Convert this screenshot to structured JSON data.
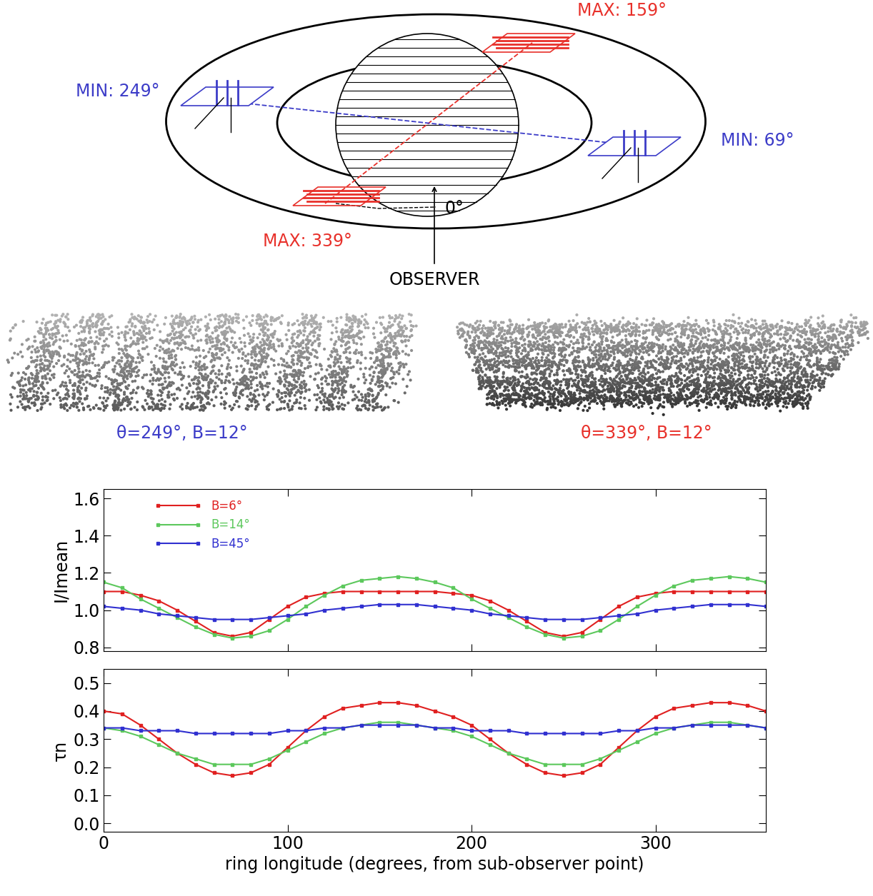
{
  "diagram": {
    "labels": [
      {
        "text": "MAX: 159°",
        "color": "#e8302a"
      },
      {
        "text": "MIN: 249°",
        "color": "#3c3cc8"
      },
      {
        "text": "MIN: 69°",
        "color": "#3c3cc8"
      },
      {
        "text": "MAX: 339°",
        "color": "#e8302a"
      }
    ],
    "zero_label": "0°",
    "observer": "OBSERVER"
  },
  "panels": [
    {
      "caption": "θ=249°, B=12°",
      "color": "#3c3cc8"
    },
    {
      "caption": "θ=339°, B=12°",
      "color": "#e8302a"
    }
  ],
  "chart_data": [
    {
      "type": "line",
      "y_label": "I/Imean",
      "legend": "upper left",
      "marker": "square",
      "tick_labels": "y",
      "x": [
        0,
        10,
        20,
        30,
        40,
        50,
        60,
        70,
        80,
        90,
        100,
        110,
        120,
        130,
        140,
        150,
        160,
        170,
        180,
        190,
        200,
        210,
        220,
        230,
        240,
        250,
        260,
        270,
        280,
        290,
        300,
        310,
        320,
        330,
        340,
        350,
        360
      ],
      "xlim": [
        0,
        360
      ],
      "xticks": [
        0,
        100,
        200,
        300
      ],
      "ylim": [
        0.78,
        1.65
      ],
      "yticks": [
        {
          "value": 0.8,
          "label": "0.8"
        },
        {
          "value": 1.0,
          "label": "1.0"
        },
        {
          "value": 1.2,
          "label": "1.2"
        },
        {
          "value": 1.4,
          "label": "1.4"
        },
        {
          "value": 1.6,
          "label": "1.6"
        }
      ],
      "series": [
        {
          "name": "B=6°",
          "color": "#e02020",
          "values": [
            1.1,
            1.1,
            1.08,
            1.05,
            1.0,
            0.94,
            0.88,
            0.86,
            0.88,
            0.95,
            1.02,
            1.07,
            1.09,
            1.1,
            1.1,
            1.1,
            1.1,
            1.1,
            1.1,
            1.09,
            1.08,
            1.05,
            1.0,
            0.94,
            0.88,
            0.86,
            0.88,
            0.95,
            1.02,
            1.07,
            1.09,
            1.1,
            1.1,
            1.1,
            1.1,
            1.1,
            1.1
          ]
        },
        {
          "name": "B=14°",
          "color": "#5cc85c",
          "values": [
            1.15,
            1.12,
            1.06,
            1.01,
            0.96,
            0.91,
            0.87,
            0.85,
            0.86,
            0.89,
            0.95,
            1.02,
            1.08,
            1.13,
            1.16,
            1.17,
            1.18,
            1.17,
            1.15,
            1.12,
            1.06,
            1.01,
            0.96,
            0.91,
            0.87,
            0.85,
            0.86,
            0.89,
            0.95,
            1.02,
            1.08,
            1.13,
            1.16,
            1.17,
            1.18,
            1.17,
            1.15
          ]
        },
        {
          "name": "B=45°",
          "color": "#3030d0",
          "values": [
            1.02,
            1.01,
            1.0,
            0.98,
            0.97,
            0.96,
            0.95,
            0.95,
            0.95,
            0.96,
            0.97,
            0.98,
            1.0,
            1.01,
            1.02,
            1.03,
            1.03,
            1.03,
            1.02,
            1.01,
            1.0,
            0.98,
            0.97,
            0.96,
            0.95,
            0.95,
            0.95,
            0.96,
            0.97,
            0.98,
            1.0,
            1.01,
            1.02,
            1.03,
            1.03,
            1.03,
            1.02
          ]
        }
      ]
    },
    {
      "type": "line",
      "y_label": "τn",
      "x_label": "ring longitude (degrees, from sub-observer point)",
      "marker": "square",
      "x": [
        0,
        10,
        20,
        30,
        40,
        50,
        60,
        70,
        80,
        90,
        100,
        110,
        120,
        130,
        140,
        150,
        160,
        170,
        180,
        190,
        200,
        210,
        220,
        230,
        240,
        250,
        260,
        270,
        280,
        290,
        300,
        310,
        320,
        330,
        340,
        350,
        360
      ],
      "xlim": [
        0,
        360
      ],
      "xticks": [
        0,
        100,
        200,
        300
      ],
      "ylim": [
        -0.03,
        0.55
      ],
      "yticks": [
        {
          "value": 0.0,
          "label": "0.0"
        },
        {
          "value": 0.1,
          "label": "0.1"
        },
        {
          "value": 0.2,
          "label": "0.2"
        },
        {
          "value": 0.3,
          "label": "0.3"
        },
        {
          "value": 0.4,
          "label": "0.4"
        },
        {
          "value": 0.5,
          "label": "0.5"
        }
      ],
      "series": [
        {
          "name": "B=6°",
          "color": "#e02020",
          "values": [
            0.4,
            0.39,
            0.35,
            0.3,
            0.25,
            0.21,
            0.18,
            0.17,
            0.18,
            0.21,
            0.27,
            0.33,
            0.38,
            0.41,
            0.42,
            0.43,
            0.43,
            0.42,
            0.4,
            0.38,
            0.35,
            0.3,
            0.25,
            0.21,
            0.18,
            0.17,
            0.18,
            0.21,
            0.27,
            0.33,
            0.38,
            0.41,
            0.42,
            0.43,
            0.43,
            0.42,
            0.4
          ]
        },
        {
          "name": "B=14°",
          "color": "#5cc85c",
          "values": [
            0.34,
            0.33,
            0.31,
            0.28,
            0.25,
            0.23,
            0.21,
            0.21,
            0.21,
            0.23,
            0.26,
            0.29,
            0.32,
            0.34,
            0.35,
            0.36,
            0.36,
            0.35,
            0.34,
            0.33,
            0.31,
            0.28,
            0.25,
            0.23,
            0.21,
            0.21,
            0.21,
            0.23,
            0.26,
            0.29,
            0.32,
            0.34,
            0.35,
            0.36,
            0.36,
            0.35,
            0.34
          ]
        },
        {
          "name": "B=45°",
          "color": "#3030d0",
          "values": [
            0.34,
            0.34,
            0.33,
            0.33,
            0.33,
            0.32,
            0.32,
            0.32,
            0.32,
            0.32,
            0.33,
            0.33,
            0.34,
            0.34,
            0.35,
            0.35,
            0.35,
            0.35,
            0.34,
            0.34,
            0.33,
            0.33,
            0.33,
            0.32,
            0.32,
            0.32,
            0.32,
            0.32,
            0.33,
            0.33,
            0.34,
            0.34,
            0.35,
            0.35,
            0.35,
            0.35,
            0.34
          ]
        }
      ]
    }
  ]
}
